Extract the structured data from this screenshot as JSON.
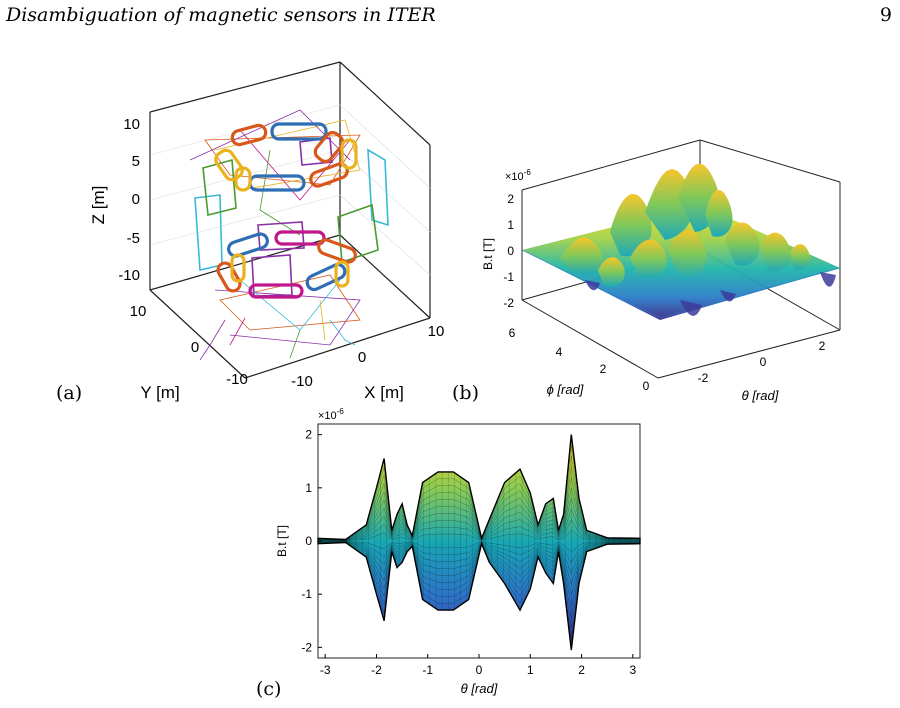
{
  "header": {
    "title": "Disambiguation of magnetic sensors in ITER",
    "page_number": "9"
  },
  "panels": {
    "a": {
      "label": "(a)",
      "zlabel": "Z [m]",
      "xlabel": "X [m]",
      "ylabel": "Y [m]",
      "z_ticks": [
        "10",
        "5",
        "0",
        "-5",
        "-10"
      ],
      "x_ticks": [
        "-10",
        "0",
        "10"
      ],
      "y_ticks": [
        "10",
        "0",
        "-10"
      ],
      "colors": {
        "blue": "#2f6eb5",
        "orange": "#d8581b",
        "yellow": "#e9b21e",
        "purple": "#8a2fa8",
        "magenta": "#c0178d",
        "green": "#4a9a30",
        "cyan": "#39b9d8"
      }
    },
    "b": {
      "label": "(b)",
      "zlabel": "B.t [T]",
      "exponent": "×10",
      "exponent_power": "-6",
      "z_ticks": [
        "2",
        "1",
        "0",
        "-1",
        "-2"
      ],
      "phi_label": "ϕ  [rad]",
      "phi_ticks": [
        "6",
        "4",
        "2",
        "0"
      ],
      "theta_label": "θ  [rad]",
      "theta_ticks": [
        "-2",
        "0",
        "2"
      ]
    },
    "c": {
      "label": "(c)",
      "ylabel": "B.t [T]",
      "xlabel": "θ  [rad]",
      "exponent": "×10",
      "exponent_power": "-6",
      "y_ticks": [
        "2",
        "1",
        "0",
        "-1",
        "-2"
      ],
      "x_ticks": [
        "-3",
        "-2",
        "-1",
        "0",
        "1",
        "2",
        "3"
      ]
    }
  },
  "chart_data": [
    {
      "type": "surface",
      "panel": "b",
      "zlabel": "B.t [T]",
      "xlabel": "θ  [rad]",
      "ylabel": "ϕ  [rad]",
      "xlim": [
        -3.14,
        3.14
      ],
      "ylim": [
        0,
        6.28
      ],
      "zlim": [
        -2.5,
        2.5
      ],
      "colormap": [
        "#3b2a87",
        "#2575c9",
        "#18aeb9",
        "#7cc764",
        "#f2c128",
        "#f9fb0e"
      ]
    },
    {
      "type": "area",
      "panel": "c",
      "xlabel": "θ  [rad]",
      "ylabel": "B.t [T]",
      "xlim": [
        -3.14,
        3.14
      ],
      "ylim": [
        -2.2,
        2.2
      ],
      "envelope": {
        "x": [
          -3.14,
          -2.6,
          -2.2,
          -2.0,
          -1.85,
          -1.7,
          -1.6,
          -1.5,
          -1.4,
          -1.3,
          -1.1,
          -0.8,
          -0.5,
          -0.2,
          0.05,
          0.2,
          0.5,
          0.8,
          1.0,
          1.15,
          1.3,
          1.45,
          1.55,
          1.65,
          1.8,
          1.95,
          2.1,
          2.5,
          3.14
        ],
        "upper": [
          0.05,
          0.03,
          0.3,
          1.0,
          1.55,
          0.2,
          0.5,
          0.7,
          0.3,
          0.1,
          1.1,
          1.3,
          1.3,
          1.1,
          0.05,
          0.4,
          1.1,
          1.35,
          0.9,
          0.3,
          0.7,
          0.8,
          0.2,
          0.5,
          2.0,
          0.8,
          0.2,
          0.06,
          0.05
        ],
        "lower": [
          -0.05,
          -0.03,
          -0.3,
          -1.0,
          -1.5,
          -0.2,
          -0.5,
          -0.4,
          -0.2,
          -0.1,
          -1.1,
          -1.3,
          -1.3,
          -1.1,
          -0.05,
          -0.4,
          -0.8,
          -1.3,
          -0.9,
          -0.3,
          -0.6,
          -0.8,
          -0.2,
          -0.8,
          -2.05,
          -0.8,
          -0.2,
          -0.06,
          -0.05
        ]
      }
    }
  ]
}
